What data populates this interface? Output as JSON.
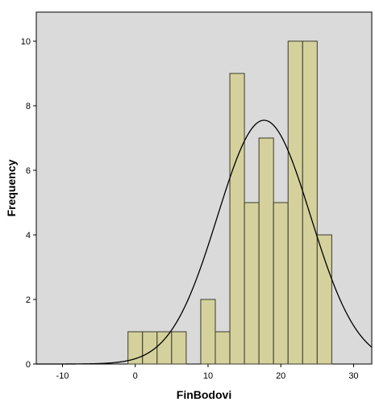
{
  "chart_data": {
    "type": "bar",
    "variant": "histogram",
    "title": "",
    "xlabel": "FinBodovi",
    "ylabel": "Frequency",
    "xlim": [
      -13.6,
      32.5
    ],
    "ylim": [
      0,
      10.9
    ],
    "xticks": [
      -10,
      0,
      10,
      20,
      30
    ],
    "yticks": [
      0,
      2,
      4,
      6,
      8,
      10
    ],
    "bin_width": 2,
    "bins": [
      {
        "start": -1,
        "end": 1,
        "count": 1
      },
      {
        "start": 1,
        "end": 3,
        "count": 1
      },
      {
        "start": 3,
        "end": 5,
        "count": 1
      },
      {
        "start": 5,
        "end": 7,
        "count": 1
      },
      {
        "start": 9,
        "end": 11,
        "count": 2
      },
      {
        "start": 11,
        "end": 13,
        "count": 1
      },
      {
        "start": 13,
        "end": 15,
        "count": 9
      },
      {
        "start": 15,
        "end": 17,
        "count": 5
      },
      {
        "start": 17,
        "end": 19,
        "count": 7
      },
      {
        "start": 19,
        "end": 21,
        "count": 5
      },
      {
        "start": 21,
        "end": 23,
        "count": 10
      },
      {
        "start": 23,
        "end": 25,
        "count": 10
      },
      {
        "start": 25,
        "end": 27,
        "count": 4
      }
    ],
    "normal_curve": {
      "mean": 17.7,
      "sd": 6.4,
      "peak": 7.55
    },
    "grid": false,
    "colors": {
      "plot_background": "#dadada",
      "bar_fill": "#d5d19d",
      "bar_stroke": "#3a3a2a",
      "curve": "#000000"
    }
  }
}
